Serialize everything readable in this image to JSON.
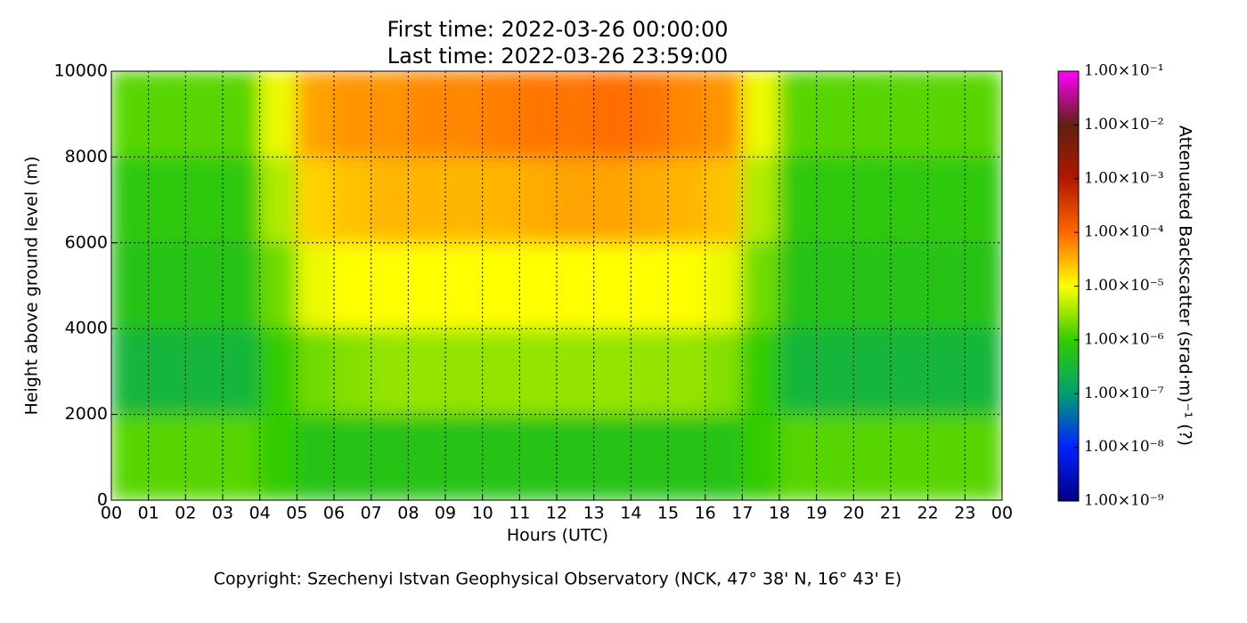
{
  "chart_data": {
    "type": "heatmap",
    "title_lines": [
      "First time: 2022-03-26 00:00:00",
      "Last time: 2022-03-26 23:59:00"
    ],
    "x_label": "Hours (UTC)",
    "y_label": "Height above ground level (m)",
    "colorbar_label": "Attenuated Backscatter (srad·m)⁻¹ (?)",
    "caption": "Copyright: Szechenyi Istvan Geophysical Observatory (NCK, 47° 38' N, 16° 43' E)",
    "xlim": [
      0,
      24
    ],
    "ylim": [
      0,
      10000
    ],
    "xticks": [
      {
        "value": 0,
        "label": "00"
      },
      {
        "value": 1,
        "label": "01"
      },
      {
        "value": 2,
        "label": "02"
      },
      {
        "value": 3,
        "label": "03"
      },
      {
        "value": 4,
        "label": "04"
      },
      {
        "value": 5,
        "label": "05"
      },
      {
        "value": 6,
        "label": "06"
      },
      {
        "value": 7,
        "label": "07"
      },
      {
        "value": 8,
        "label": "08"
      },
      {
        "value": 9,
        "label": "09"
      },
      {
        "value": 10,
        "label": "10"
      },
      {
        "value": 11,
        "label": "11"
      },
      {
        "value": 12,
        "label": "12"
      },
      {
        "value": 13,
        "label": "13"
      },
      {
        "value": 14,
        "label": "14"
      },
      {
        "value": 15,
        "label": "15"
      },
      {
        "value": 16,
        "label": "16"
      },
      {
        "value": 17,
        "label": "17"
      },
      {
        "value": 18,
        "label": "18"
      },
      {
        "value": 19,
        "label": "19"
      },
      {
        "value": 20,
        "label": "20"
      },
      {
        "value": 21,
        "label": "21"
      },
      {
        "value": 22,
        "label": "22"
      },
      {
        "value": 23,
        "label": "23"
      },
      {
        "value": 24,
        "label": "00"
      }
    ],
    "yticks": [
      0,
      2000,
      4000,
      6000,
      8000,
      10000
    ],
    "grid": true,
    "x_edges": [
      0,
      1,
      2,
      3,
      4,
      5,
      6,
      7,
      8,
      9,
      10,
      11,
      12,
      13,
      14,
      15,
      16,
      17,
      18,
      19,
      20,
      21,
      22,
      23,
      24
    ],
    "y_edges": [
      0,
      2000,
      4000,
      6000,
      8000,
      10000
    ],
    "values": [
      [
        1.5e-06,
        1.5e-06,
        1.5e-06,
        1.5e-06,
        1e-06,
        6e-07,
        6e-07,
        6e-07,
        6e-07,
        6e-07,
        6e-07,
        6e-07,
        6e-07,
        6e-07,
        6e-07,
        6e-07,
        6e-07,
        1e-06,
        1.5e-06,
        1.5e-06,
        1.5e-06,
        1.5e-06,
        1.5e-06,
        1.5e-06
      ],
      [
        3e-07,
        3e-07,
        3e-07,
        3e-07,
        1e-06,
        2e-06,
        2.5e-06,
        3e-06,
        3e-06,
        3e-06,
        3e-06,
        3e-06,
        3e-06,
        3e-06,
        3e-06,
        3e-06,
        2.5e-06,
        1e-06,
        3e-07,
        3e-07,
        3e-07,
        3e-07,
        3e-07,
        3e-07
      ],
      [
        6e-07,
        6e-07,
        6e-07,
        6e-07,
        2e-06,
        8e-06,
        1e-05,
        1e-05,
        1e-05,
        1e-05,
        1e-05,
        1e-05,
        1e-05,
        1e-05,
        1e-05,
        1e-05,
        8e-06,
        2e-06,
        6e-07,
        6e-07,
        6e-07,
        6e-07,
        6e-07,
        6e-07
      ],
      [
        8e-07,
        8e-07,
        8e-07,
        8e-07,
        4e-06,
        2e-05,
        2.5e-05,
        3e-05,
        3e-05,
        3e-05,
        3e-05,
        3.5e-05,
        4e-05,
        4e-05,
        3.5e-05,
        3e-05,
        2.5e-05,
        4e-06,
        8e-07,
        8e-07,
        8e-07,
        8e-07,
        8e-07,
        8e-07
      ],
      [
        1.5e-06,
        1.5e-06,
        1.5e-06,
        1.5e-06,
        8e-06,
        4e-05,
        5e-05,
        5e-05,
        6e-05,
        6e-05,
        7e-05,
        8e-05,
        8e-05,
        9e-05,
        8e-05,
        6e-05,
        5e-05,
        8e-06,
        1.5e-06,
        1.5e-06,
        1.5e-06,
        1.5e-06,
        1.5e-06,
        1.5e-06
      ]
    ],
    "color_scale": "log",
    "clim": [
      1e-09,
      0.1
    ],
    "cticks": [
      {
        "value": 1e-09,
        "label": "1.00×10⁻⁹"
      },
      {
        "value": 1e-08,
        "label": "1.00×10⁻⁸"
      },
      {
        "value": 1e-07,
        "label": "1.00×10⁻⁷"
      },
      {
        "value": 1e-06,
        "label": "1.00×10⁻⁶"
      },
      {
        "value": 1e-05,
        "label": "1.00×10⁻⁵"
      },
      {
        "value": 0.0001,
        "label": "1.00×10⁻⁴"
      },
      {
        "value": 0.001,
        "label": "1.00×10⁻³"
      },
      {
        "value": 0.01,
        "label": "1.00×10⁻²"
      },
      {
        "value": 0.1,
        "label": "1.00×10⁻¹"
      }
    ],
    "colormap": [
      "#000080",
      "#0022ff",
      "#00a070",
      "#33cc00",
      "#ffff00",
      "#ff6600",
      "#b01800",
      "#602010",
      "#ff00ff"
    ]
  }
}
